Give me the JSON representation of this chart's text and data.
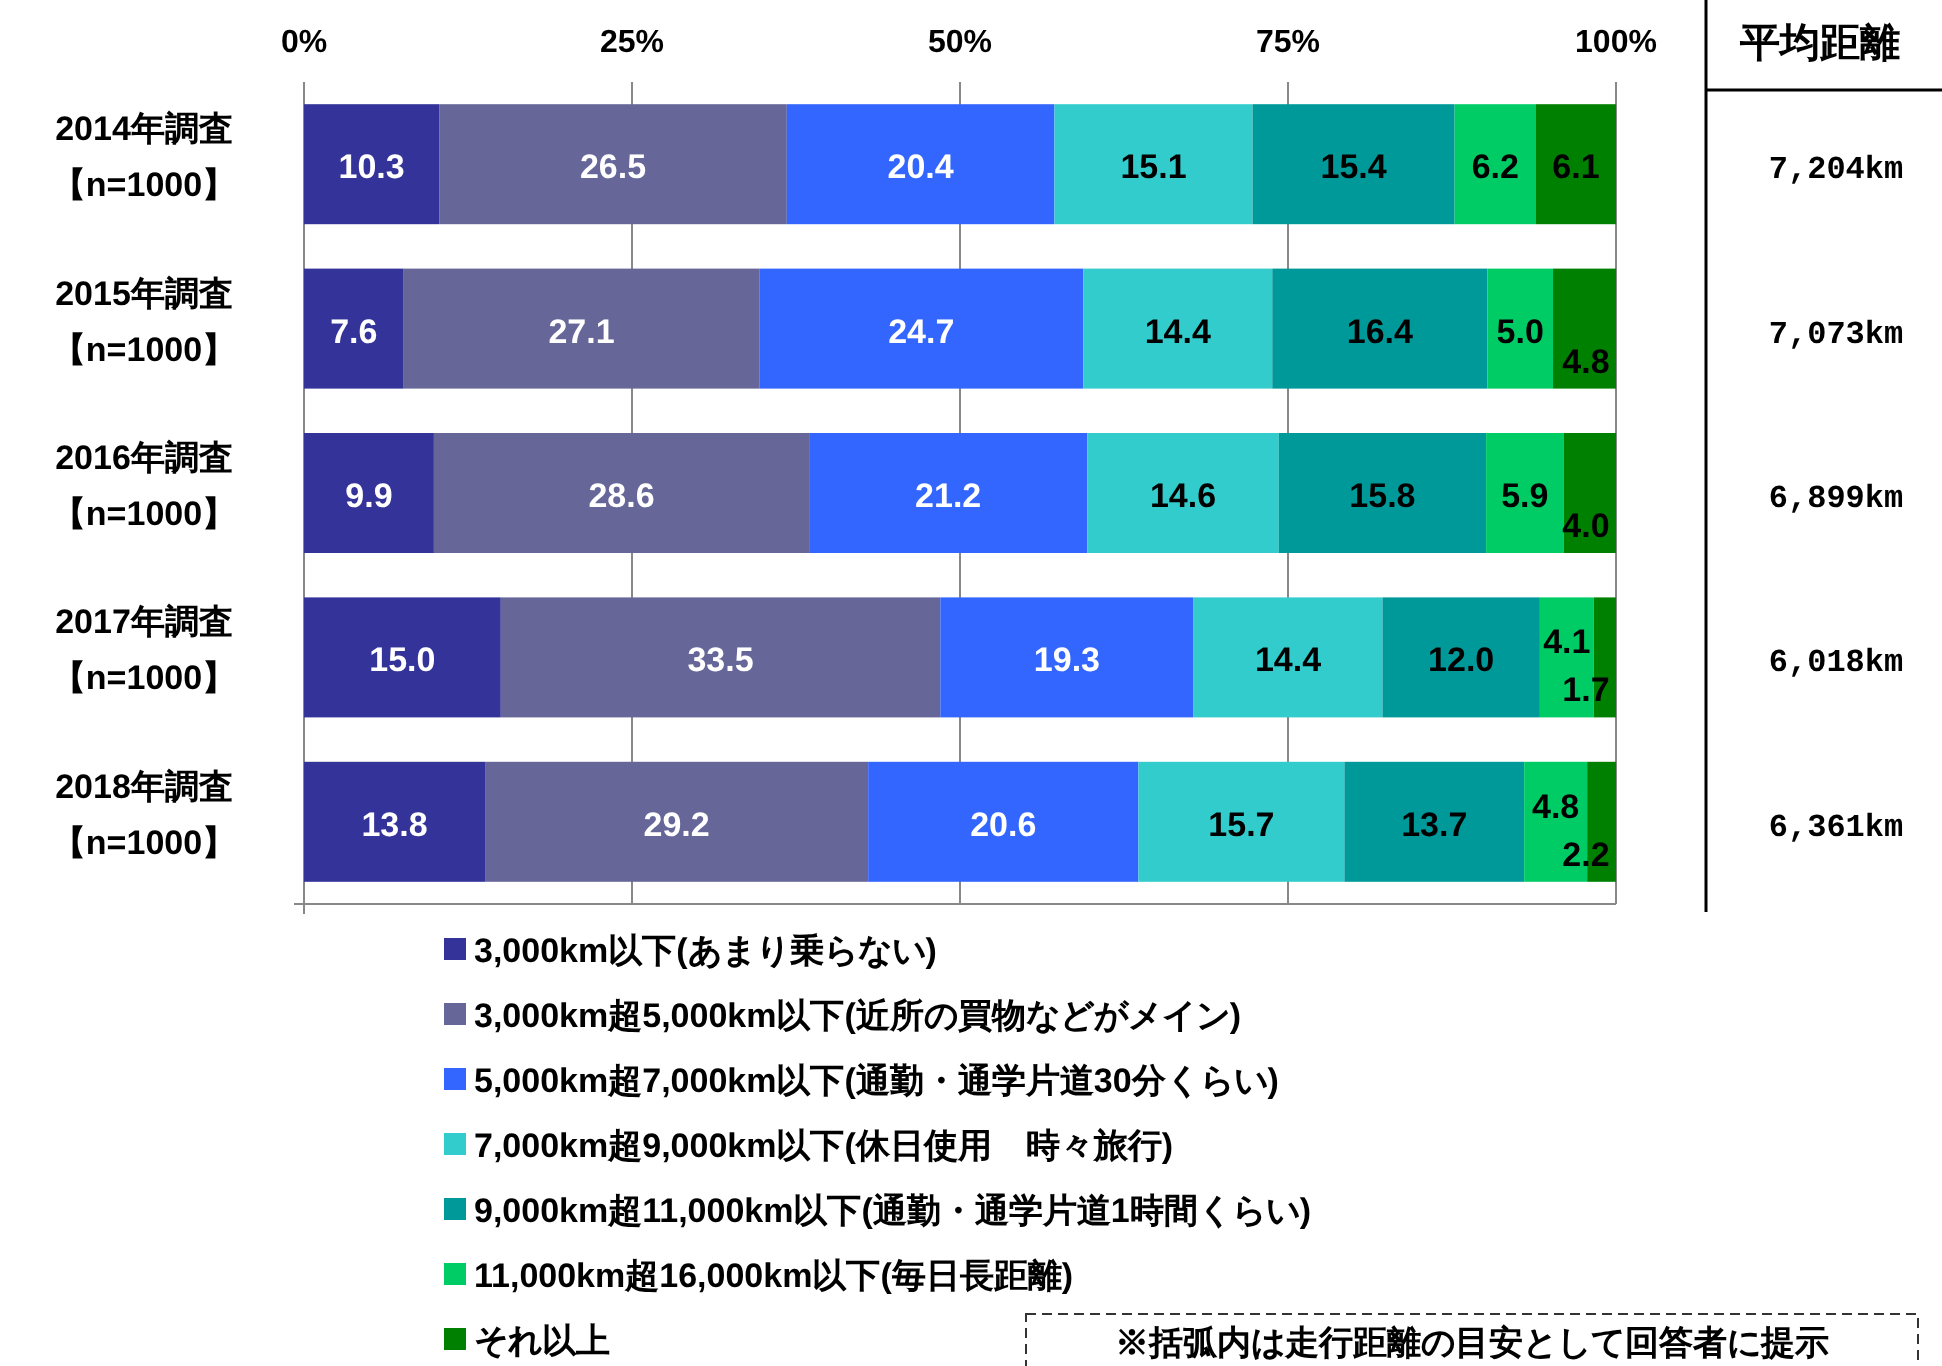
{
  "chart_data": {
    "type": "bar",
    "orientation": "horizontal",
    "stacked": true,
    "categories": [
      "2014年調査【n=1000】",
      "2015年調査【n=1000】",
      "2016年調査【n=1000】",
      "2017年調査【n=1000】",
      "2018年調査【n=1000】"
    ],
    "series": [
      {
        "name": "3,000km以下(あまり乗らない)",
        "color": "#333399",
        "values": [
          10.3,
          7.6,
          9.9,
          15.0,
          13.8
        ]
      },
      {
        "name": "3,000km超5,000km以下(近所の買物などがメイン)",
        "color": "#666699",
        "values": [
          26.5,
          27.1,
          28.6,
          33.5,
          29.2
        ]
      },
      {
        "name": "5,000km超7,000km以下(通勤・通学片道30分くらい)",
        "color": "#3366ff",
        "values": [
          20.4,
          24.7,
          21.2,
          19.3,
          20.6
        ]
      },
      {
        "name": "7,000km超9,000km以下(休日使用　時々旅行)",
        "color": "#33cccc",
        "values": [
          15.1,
          14.4,
          14.6,
          14.4,
          15.7
        ]
      },
      {
        "name": "9,000km超11,000km以下(通勤・通学片道1時間くらい)",
        "color": "#009999",
        "values": [
          15.4,
          16.4,
          15.8,
          12.0,
          13.7
        ]
      },
      {
        "name": "11,000km超16,000km以下(毎日長距離)",
        "color": "#00cc66",
        "values": [
          6.2,
          5.0,
          5.9,
          4.1,
          4.8
        ]
      },
      {
        "name": "それ以上",
        "color": "#008000",
        "values": [
          6.1,
          4.8,
          4.0,
          1.7,
          2.2
        ]
      }
    ],
    "value_labels": [
      [
        "10.3",
        "7.6",
        "9.9",
        "15.0",
        "13.8"
      ],
      [
        "26.5",
        "27.1",
        "28.6",
        "33.5",
        "29.2"
      ],
      [
        "20.4",
        "24.7",
        "21.2",
        "19.3",
        "20.6"
      ],
      [
        "15.1",
        "14.4",
        "14.6",
        "14.4",
        "15.7"
      ],
      [
        "15.4",
        "16.4",
        "15.8",
        "12.0",
        "13.7"
      ],
      [
        "6.2",
        "5.0",
        "5.9",
        "4.1",
        "4.8"
      ],
      [
        "6.1",
        "4.8",
        "4.0",
        "1.7",
        "2.2"
      ]
    ],
    "xlim": [
      0,
      100
    ],
    "xticks": [
      {
        "value": 0,
        "label": "0%"
      },
      {
        "value": 25,
        "label": "25%"
      },
      {
        "value": 50,
        "label": "50%"
      },
      {
        "value": 75,
        "label": "75%"
      },
      {
        "value": 100,
        "label": "100%"
      }
    ],
    "grid": "x",
    "legend": "bottom",
    "annotations": [
      "※括弧内は走行距離の目安として回答者に提示",
      "平均距離",
      "7,204km",
      "7,073km",
      "6,899km",
      "6,018km",
      "6,361km"
    ]
  }
}
